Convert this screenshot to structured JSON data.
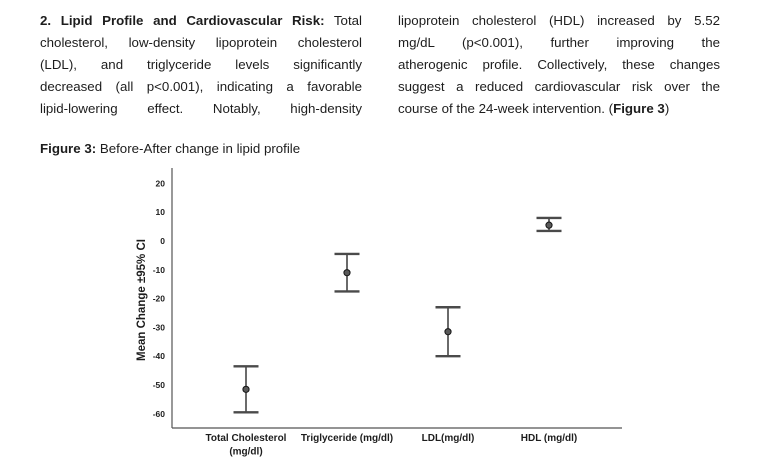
{
  "article": {
    "left_column": {
      "lines": [
        {
          "bold": "2. Lipid Profile and Cardiovascular Risk:",
          "text": " Total"
        },
        {
          "text": "cholesterol, low-density lipoprotein cholesterol"
        },
        {
          "text": "(LDL), and triglyceride levels significantly"
        },
        {
          "text": "decreased (all p<0.001), indicating a favorable"
        },
        {
          "text": "lipid-lowering effect. Notably, high-density"
        }
      ]
    },
    "right_column": {
      "lines": [
        {
          "text": "lipoprotein cholesterol (HDL) increased by 5.52"
        },
        {
          "text": "mg/dL (p<0.001), further improving the"
        },
        {
          "text": "atherogenic profile. Collectively, these changes"
        },
        {
          "text": "suggest a reduced cardiovascular risk over the"
        },
        {
          "text": "course of the 24-week intervention. (",
          "bold_suffix": "Figure 3",
          "after": ")"
        }
      ]
    }
  },
  "figure_caption": {
    "label": "Figure 3:",
    "text": " Before-After change in lipid profile"
  },
  "chart_data": {
    "type": "scatter",
    "subtype": "mean-with-95ci-error-bars",
    "title": "Before-After change in lipid profile",
    "xlabel": "",
    "ylabel": "Mean Change ±95% CI",
    "categories": [
      [
        "Total Cholesterol",
        "(mg/dl)"
      ],
      [
        "Triglyceride (mg/dl)"
      ],
      [
        "LDL(mg/dl)"
      ],
      [
        "HDL (mg/dl)"
      ]
    ],
    "points": [
      {
        "label": "Total Cholesterol (mg/dl)",
        "mean": -51.5,
        "ci_low": -59.5,
        "ci_high": -43.5
      },
      {
        "label": "Triglyceride (mg/dl)",
        "mean": -11.0,
        "ci_low": -17.5,
        "ci_high": -4.5
      },
      {
        "label": "LDL(mg/dl)",
        "mean": -31.5,
        "ci_low": -40.0,
        "ci_high": -23.0
      },
      {
        "label": "HDL (mg/dl)",
        "mean": 5.5,
        "ci_low": 3.5,
        "ci_high": 8.0
      }
    ],
    "yticks": [
      20,
      10,
      0,
      -10,
      -20,
      -30,
      -40,
      -50,
      -60
    ],
    "ylim": [
      -65,
      25
    ],
    "grid": false,
    "legend": false,
    "axis_color": "#555555",
    "errorbar_line_color": "#2b2b2b",
    "errorbar_cap_color": "#4a4a4a",
    "marker_fill": "#595959",
    "marker_stroke": "#141414",
    "text_color": "#1d1d1d"
  }
}
